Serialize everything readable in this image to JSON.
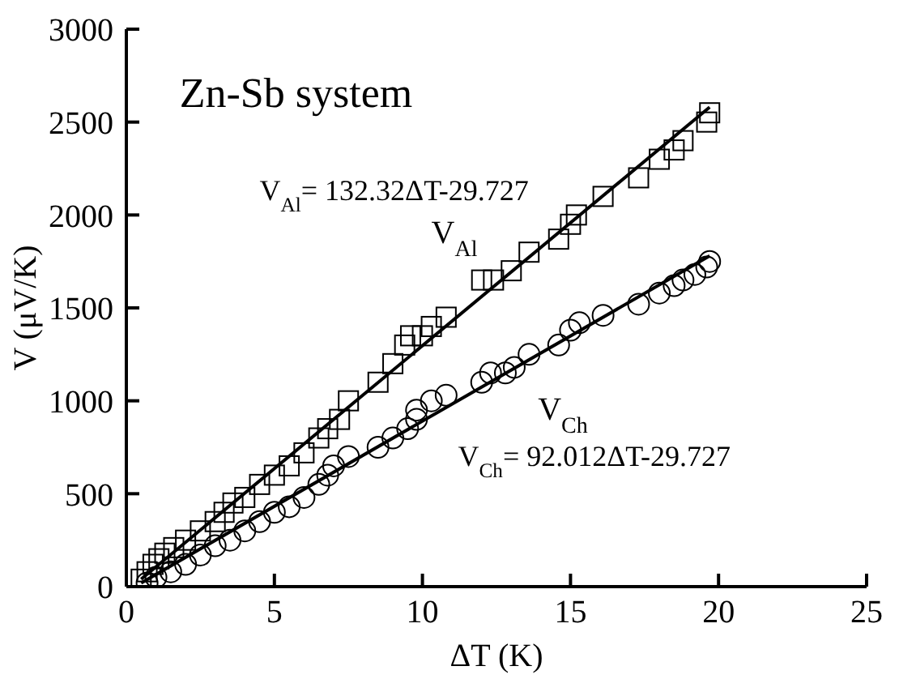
{
  "chart_data": {
    "type": "scatter",
    "title": "Zn-Sb system",
    "xlabel": "ΔT (K)",
    "ylabel": "V (μV/K)",
    "xlim": [
      0,
      25
    ],
    "xticks": [
      0,
      5,
      10,
      15,
      20,
      25
    ],
    "ylim": [
      0,
      3000
    ],
    "yticks": [
      0,
      500,
      1000,
      1500,
      2000,
      2500,
      3000
    ],
    "grid": false,
    "legend": false,
    "annotations": [
      "V$_{Al}$= 132.32ΔT-29.727",
      "V$_{Ch}$= 92.012ΔT-29.727"
    ],
    "series": [
      {
        "name": "V$_{Al}$",
        "marker": "square",
        "color": "#000000",
        "x": [
          0.5,
          0.7,
          0.9,
          1.1,
          1.3,
          1.6,
          2,
          2.5,
          3,
          3.3,
          3.6,
          4,
          4.5,
          5,
          5.5,
          6,
          6.5,
          6.8,
          7.2,
          7.5,
          8.5,
          9,
          9.4,
          9.6,
          10,
          10.3,
          10.8,
          12,
          12.4,
          13,
          13.6,
          14.6,
          15,
          15.2,
          16.1,
          17.3,
          18,
          18.5,
          18.8,
          19.6,
          19.7
        ],
        "values": [
          40,
          80,
          120,
          150,
          180,
          210,
          250,
          300,
          350,
          400,
          450,
          480,
          550,
          600,
          650,
          720,
          800,
          850,
          900,
          1000,
          1100,
          1200,
          1300,
          1350,
          1350,
          1400,
          1450,
          1650,
          1650,
          1700,
          1800,
          1870,
          1950,
          2000,
          2100,
          2200,
          2300,
          2350,
          2400,
          2500,
          2550
        ]
      },
      {
        "name": "V$_{Ch}$",
        "marker": "circle",
        "color": "#000000",
        "x": [
          0.7,
          1,
          1.5,
          2,
          2.5,
          3,
          3.5,
          4,
          4.5,
          5,
          5.5,
          6,
          6.5,
          6.8,
          7,
          7.5,
          8.5,
          9,
          9.5,
          9.8,
          9.8,
          10.3,
          10.8,
          12,
          12.3,
          12.8,
          13.1,
          13.6,
          14.6,
          15,
          15.3,
          16.1,
          17.3,
          18,
          18.5,
          18.8,
          19.2,
          19.6,
          19.7
        ],
        "values": [
          20,
          50,
          80,
          120,
          170,
          220,
          250,
          300,
          350,
          400,
          430,
          480,
          550,
          600,
          650,
          700,
          750,
          800,
          850,
          900,
          950,
          1000,
          1030,
          1100,
          1150,
          1150,
          1180,
          1250,
          1300,
          1380,
          1420,
          1460,
          1520,
          1580,
          1620,
          1650,
          1680,
          1720,
          1750
        ]
      },
      {
        "type": "line",
        "marker": "none",
        "line_style": "solid",
        "color": "#000000",
        "x": [
          0.5,
          19.7
        ],
        "values": [
          40,
          2580
        ]
      },
      {
        "type": "line",
        "marker": "none",
        "line_style": "solid",
        "color": "#000000",
        "x": [
          0.5,
          19.7
        ],
        "values": [
          20,
          1780
        ]
      }
    ]
  }
}
